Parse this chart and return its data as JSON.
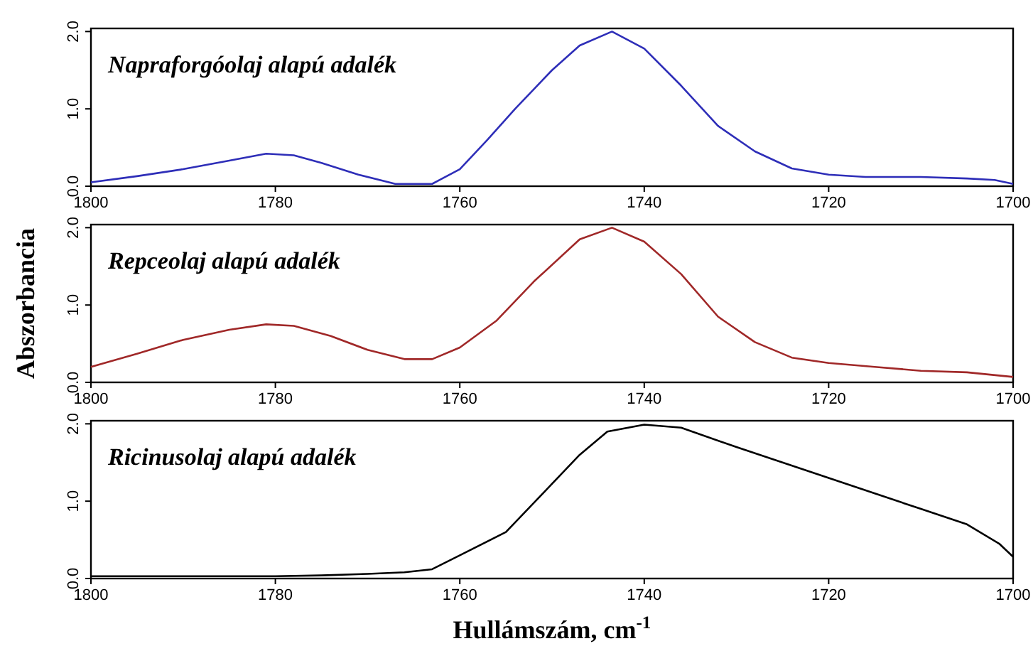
{
  "chart_data": [
    {
      "type": "line",
      "annotations": [
        "Napraforgóolaj alapú adalék"
      ],
      "xlim": [
        1800,
        1700
      ],
      "xticks": [
        1800,
        1780,
        1760,
        1740,
        1720,
        1700
      ],
      "ylim": [
        0,
        2.04
      ],
      "yticks": [
        {
          "value": 0,
          "label": "0.0"
        },
        {
          "value": 1,
          "label": "1.0"
        },
        {
          "value": 2,
          "label": "2.0"
        }
      ],
      "series": [
        {
          "color": "#2e2eb8",
          "x": [
            1800,
            1795,
            1790,
            1785,
            1781,
            1778,
            1775,
            1771,
            1767,
            1763,
            1760,
            1757,
            1754,
            1750,
            1747,
            1743.5,
            1740,
            1736,
            1732,
            1728,
            1724,
            1720,
            1716,
            1710,
            1705,
            1702,
            1700
          ],
          "values": [
            0.05,
            0.13,
            0.22,
            0.33,
            0.42,
            0.4,
            0.3,
            0.15,
            0.03,
            0.03,
            0.22,
            0.6,
            1.0,
            1.5,
            1.82,
            2.0,
            1.78,
            1.3,
            0.78,
            0.45,
            0.23,
            0.15,
            0.12,
            0.12,
            0.1,
            0.08,
            0.03
          ]
        }
      ]
    },
    {
      "type": "line",
      "annotations": [
        "Repceolaj alapú adalék"
      ],
      "ylabel": "Abszorbancia",
      "xlim": [
        1800,
        1700
      ],
      "xticks": [
        1800,
        1780,
        1760,
        1740,
        1720,
        1700
      ],
      "ylim": [
        0,
        2.04
      ],
      "yticks": [
        {
          "value": 0,
          "label": "0.0"
        },
        {
          "value": 1,
          "label": "1.0"
        },
        {
          "value": 2,
          "label": "2.0"
        }
      ],
      "series": [
        {
          "color": "#a02828",
          "x": [
            1800,
            1795,
            1790,
            1785,
            1781,
            1778,
            1774,
            1770,
            1766,
            1763,
            1760,
            1756,
            1752,
            1747,
            1743.5,
            1740,
            1736,
            1732,
            1728,
            1724,
            1720,
            1715,
            1710,
            1705,
            1700
          ],
          "values": [
            0.2,
            0.37,
            0.55,
            0.68,
            0.75,
            0.73,
            0.6,
            0.42,
            0.3,
            0.3,
            0.45,
            0.8,
            1.3,
            1.85,
            2.0,
            1.82,
            1.4,
            0.85,
            0.52,
            0.32,
            0.25,
            0.2,
            0.15,
            0.13,
            0.07
          ]
        }
      ]
    },
    {
      "type": "line",
      "annotations": [
        "Ricinusolaj alapú adalék"
      ],
      "xlabel": "Hullámszám, cm$^{-1}$",
      "xlim": [
        1800,
        1700
      ],
      "xticks": [
        1800,
        1780,
        1760,
        1740,
        1720,
        1700
      ],
      "ylim": [
        0,
        2.04
      ],
      "yticks": [
        {
          "value": 0,
          "label": "0.0"
        },
        {
          "value": 1,
          "label": "1.0"
        },
        {
          "value": 2,
          "label": "2.0"
        }
      ],
      "series": [
        {
          "color": "#000000",
          "x": [
            1800,
            1790,
            1780,
            1775,
            1770,
            1766,
            1763,
            1760,
            1755,
            1751,
            1747,
            1744,
            1740,
            1736,
            1730,
            1725,
            1720,
            1715,
            1710,
            1705,
            1701.5,
            1700
          ],
          "values": [
            0.03,
            0.03,
            0.03,
            0.04,
            0.06,
            0.08,
            0.12,
            0.3,
            0.6,
            1.1,
            1.6,
            1.9,
            1.99,
            1.95,
            1.7,
            1.5,
            1.3,
            1.1,
            0.9,
            0.7,
            0.45,
            0.28
          ]
        }
      ]
    }
  ]
}
